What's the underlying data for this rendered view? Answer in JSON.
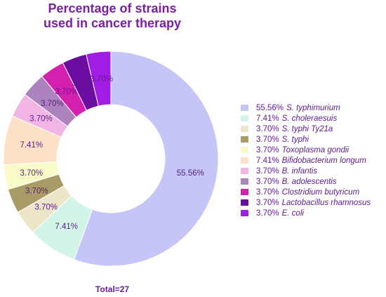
{
  "chart_data": {
    "type": "pie",
    "donut": true,
    "title": "Percentage of strains used in cancer therapy",
    "title_lines": [
      "Percentage of strains",
      "used in cancer therapy"
    ],
    "total_label": "Total=27",
    "legend_position": "right",
    "slices": [
      {
        "name": "S. typhimurium",
        "value": 55.56,
        "label": "55.56%",
        "color": "#c5c5f7"
      },
      {
        "name": "S. choleraesuis",
        "value": 7.41,
        "label": "7.41%",
        "color": "#d3f5e8"
      },
      {
        "name": "S. typhi Ty21a",
        "value": 3.7,
        "label": "3.70%",
        "color": "#ede5c8"
      },
      {
        "name": "S. typhi",
        "value": 3.7,
        "label": "3.70%",
        "color": "#a89b66"
      },
      {
        "name": "Toxoplasma gondii",
        "value": 3.7,
        "label": "3.70%",
        "color": "#f8fbc8"
      },
      {
        "name": "Bifidobacterium longum",
        "value": 7.41,
        "label": "7.41%",
        "color": "#fde1c6"
      },
      {
        "name": "B. infantis",
        "value": 3.7,
        "label": "3.70%",
        "color": "#f1b6e6"
      },
      {
        "name": "B. adolescentis",
        "value": 3.7,
        "label": "3.70%",
        "color": "#ad83be"
      },
      {
        "name": "Clostridium butyricum",
        "value": 3.7,
        "label": "3.70%",
        "color": "#d51fae"
      },
      {
        "name": "Lactobacillus rhamnosus",
        "value": 3.7,
        "label": "3.70%",
        "color": "#6a0da0"
      },
      {
        "name": "E. coli",
        "value": 3.7,
        "label": "3.70%",
        "color": "#a11de3"
      }
    ]
  }
}
